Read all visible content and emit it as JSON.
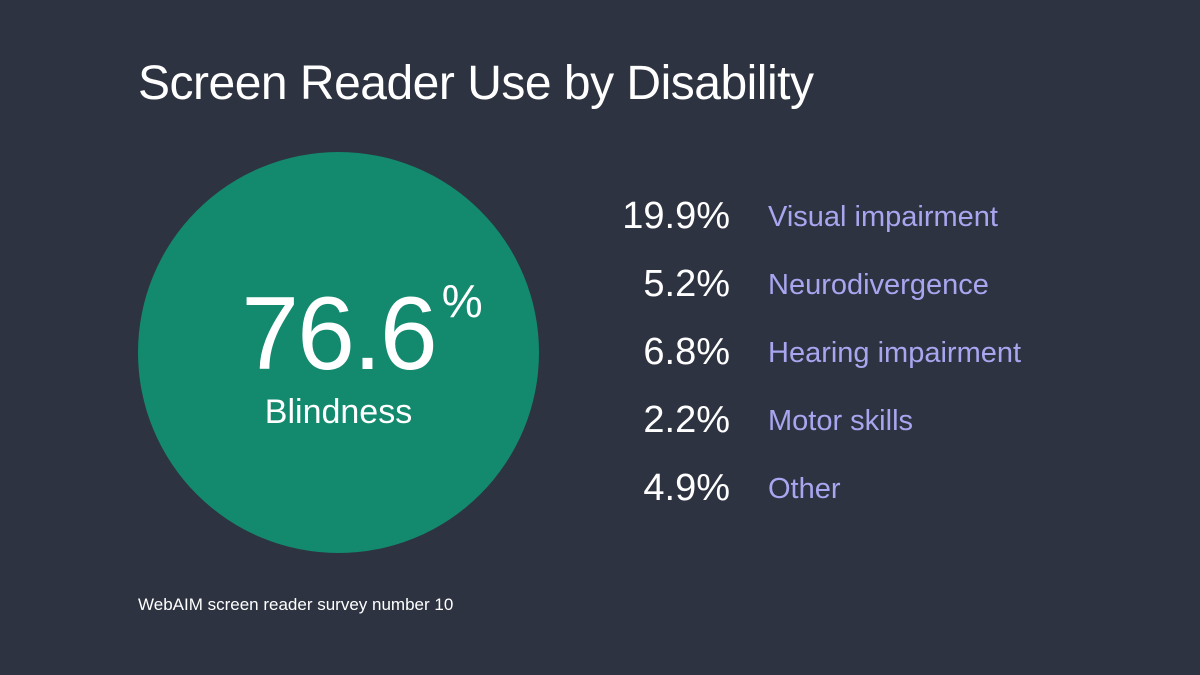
{
  "title": "Screen Reader Use by Disability",
  "colors": {
    "background": "#2e3341",
    "circle": "#138a6e",
    "label": "#a9a6f0",
    "text": "#ffffff"
  },
  "hero": {
    "value": "76.6",
    "unit": "%",
    "label": "Blindness"
  },
  "source": "WebAIM screen reader survey number 10",
  "chart_data": {
    "type": "table",
    "title": "Screen Reader Use by Disability",
    "unit": "%",
    "categories": [
      "Blindness",
      "Visual impairment",
      "Neurodivergence",
      "Hearing impairment",
      "Motor skills",
      "Other"
    ],
    "values": [
      76.6,
      19.9,
      5.2,
      6.8,
      2.2,
      4.9
    ]
  },
  "rows": [
    {
      "value": "19.9%",
      "label": "Visual impairment"
    },
    {
      "value": "5.2%",
      "label": "Neurodivergence"
    },
    {
      "value": "6.8%",
      "label": "Hearing impairment"
    },
    {
      "value": "2.2%",
      "label": "Motor skills"
    },
    {
      "value": "4.9%",
      "label": "Other"
    }
  ]
}
